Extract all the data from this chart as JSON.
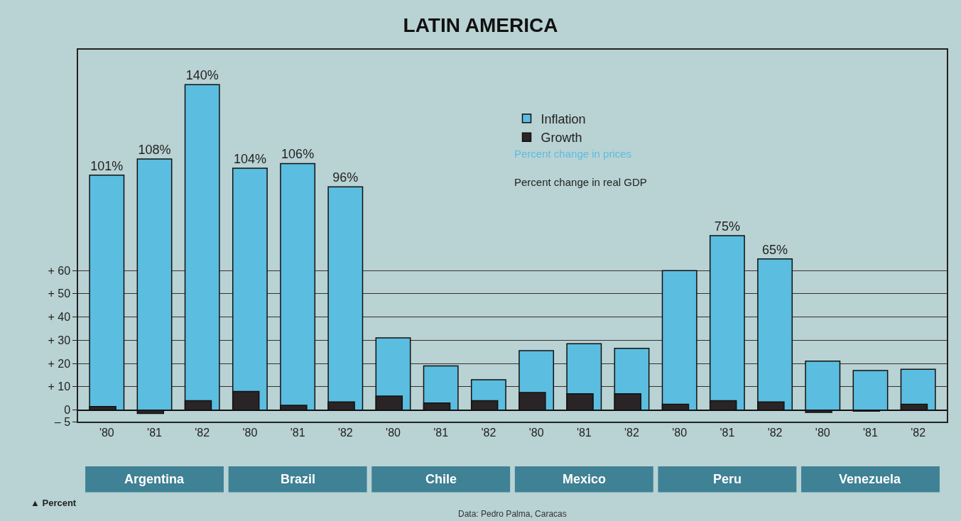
{
  "chart_data": {
    "type": "bar",
    "title": "LATIN AMERICA",
    "categories": [
      "'80",
      "'81",
      "'82",
      "'80",
      "'81",
      "'82",
      "'80",
      "'81",
      "'82",
      "'80",
      "'81",
      "'82",
      "'80",
      "'81",
      "'82",
      "'80",
      "'81",
      "'82"
    ],
    "series": [
      {
        "name": "Inflation",
        "color": "#5bbde0",
        "values": [
          101,
          108,
          140,
          104,
          106,
          96,
          31,
          19,
          13,
          25.5,
          28.5,
          26.5,
          60,
          75,
          65,
          21,
          17,
          17.5
        ],
        "value_labels": [
          "101%",
          "108%",
          "140%",
          "104%",
          "106%",
          "96%",
          null,
          null,
          null,
          null,
          null,
          null,
          null,
          "75%",
          "65%",
          null,
          null,
          null
        ]
      },
      {
        "name": "Growth",
        "color": "#2a2426",
        "values": [
          1.5,
          -1.5,
          4,
          8,
          2,
          3.5,
          6,
          3,
          4,
          7.5,
          7,
          7,
          2.5,
          4,
          3.5,
          -1,
          -0.5,
          2.5
        ]
      }
    ],
    "ylim": [
      -5,
      155
    ],
    "yticks": [
      {
        "value": -5,
        "label": "– 5"
      },
      0,
      {
        "value": 10,
        "label": "+ 10"
      },
      {
        "value": 20,
        "label": "+ 20"
      },
      {
        "value": 30,
        "label": "+ 30"
      },
      {
        "value": 40,
        "label": "+ 40"
      },
      {
        "value": 50,
        "label": "+ 50"
      },
      {
        "value": 60,
        "label": "+ 60"
      }
    ],
    "grid": "y",
    "legend": "top",
    "annotations": [
      "Argentina",
      "Brazil",
      "Chile",
      "Mexico",
      "Peru",
      "Venezuela",
      "Percent change in prices",
      "Percent change in real GDP",
      "▲ Percent",
      "Data: Pedro Palma, Caracas"
    ]
  }
}
